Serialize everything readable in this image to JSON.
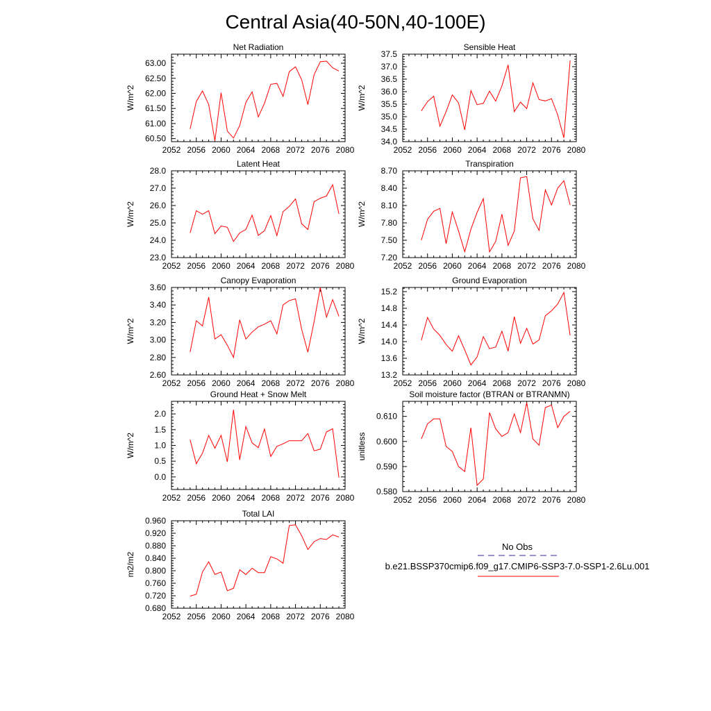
{
  "page_title": "Central Asia(40-50N,40-100E)",
  "colors": {
    "series": "#ff0000",
    "obs": "#2a2a9e",
    "axis": "#000000"
  },
  "legend": {
    "obs_label": "No Obs",
    "model_label": "b.e21.BSSP370cmip6.f09_g17.CMIP6-SSP3-7.0-SSP1-2.6Lu.001"
  },
  "chart_data": [
    {
      "id": "net-radiation",
      "type": "line",
      "title": "Net Radiation",
      "ylabel": "W/m^2",
      "xlim": [
        2052,
        2080
      ],
      "ylim": [
        60.4,
        63.3
      ],
      "x_ticks": [
        "2052",
        "2056",
        "2060",
        "2064",
        "2068",
        "2072",
        "2076",
        "2080"
      ],
      "y_ticks": [
        "60.50",
        "61.00",
        "61.50",
        "62.00",
        "62.50",
        "63.00"
      ],
      "x": [
        2055,
        2056,
        2057,
        2058,
        2059,
        2060,
        2061,
        2062,
        2063,
        2064,
        2065,
        2066,
        2067,
        2068,
        2069,
        2070,
        2071,
        2072,
        2073,
        2074,
        2075,
        2076,
        2077,
        2078,
        2079
      ],
      "values": [
        60.82,
        61.73,
        62.08,
        61.63,
        60.43,
        62.02,
        60.75,
        60.52,
        60.93,
        61.7,
        62.05,
        61.22,
        61.67,
        62.3,
        62.33,
        61.9,
        62.72,
        62.88,
        62.45,
        61.63,
        62.62,
        63.05,
        63.07,
        62.85,
        62.74
      ]
    },
    {
      "id": "sensible-heat",
      "type": "line",
      "title": "Sensible Heat",
      "ylabel": "W/m^2",
      "xlim": [
        2052,
        2080
      ],
      "ylim": [
        34.0,
        37.5
      ],
      "x_ticks": [
        "2052",
        "2056",
        "2060",
        "2064",
        "2068",
        "2072",
        "2076",
        "2080"
      ],
      "y_ticks": [
        "34.0",
        "34.5",
        "35.0",
        "35.5",
        "36.0",
        "36.5",
        "37.0",
        "37.5"
      ],
      "x": [
        2055,
        2056,
        2057,
        2058,
        2059,
        2060,
        2061,
        2062,
        2063,
        2064,
        2065,
        2066,
        2067,
        2068,
        2069,
        2070,
        2071,
        2072,
        2073,
        2074,
        2075,
        2076,
        2077,
        2078,
        2079
      ],
      "values": [
        35.23,
        35.6,
        35.82,
        34.62,
        35.2,
        35.87,
        35.55,
        34.47,
        36.04,
        35.48,
        35.53,
        36.02,
        35.62,
        36.23,
        37.07,
        35.2,
        35.58,
        35.32,
        36.35,
        35.68,
        35.63,
        35.72,
        35.07,
        34.15,
        37.25
      ]
    },
    {
      "id": "latent-heat",
      "type": "line",
      "title": "Latent Heat",
      "ylabel": "W/m^2",
      "xlim": [
        2052,
        2080
      ],
      "ylim": [
        23.0,
        28.0
      ],
      "x_ticks": [
        "2052",
        "2056",
        "2060",
        "2064",
        "2068",
        "2072",
        "2076",
        "2080"
      ],
      "y_ticks": [
        "23.0",
        "24.0",
        "25.0",
        "26.0",
        "27.0",
        "28.0"
      ],
      "x": [
        2055,
        2056,
        2057,
        2058,
        2059,
        2060,
        2061,
        2062,
        2063,
        2064,
        2065,
        2066,
        2067,
        2068,
        2069,
        2070,
        2071,
        2072,
        2073,
        2074,
        2075,
        2076,
        2077,
        2078,
        2079
      ],
      "values": [
        24.42,
        25.7,
        25.5,
        25.7,
        24.38,
        24.82,
        24.75,
        23.93,
        24.42,
        24.62,
        25.45,
        24.28,
        24.55,
        25.42,
        24.27,
        25.65,
        25.95,
        26.38,
        24.95,
        24.62,
        26.22,
        26.42,
        26.55,
        27.2,
        25.52
      ]
    },
    {
      "id": "transpiration",
      "type": "line",
      "title": "Transpiration",
      "ylabel": "W/m^2",
      "xlim": [
        2052,
        2080
      ],
      "ylim": [
        7.2,
        8.7
      ],
      "x_ticks": [
        "2052",
        "2056",
        "2060",
        "2064",
        "2068",
        "2072",
        "2076",
        "2080"
      ],
      "y_ticks": [
        "7.20",
        "7.50",
        "7.80",
        "8.10",
        "8.40",
        "8.70"
      ],
      "x": [
        2055,
        2056,
        2057,
        2058,
        2059,
        2060,
        2061,
        2062,
        2063,
        2064,
        2065,
        2066,
        2067,
        2068,
        2069,
        2070,
        2071,
        2072,
        2073,
        2074,
        2075,
        2076,
        2077,
        2078,
        2079
      ],
      "values": [
        7.5,
        7.86,
        8.0,
        8.05,
        7.44,
        7.99,
        7.66,
        7.3,
        7.69,
        7.98,
        8.22,
        7.3,
        7.48,
        7.95,
        7.41,
        7.66,
        8.58,
        8.6,
        7.87,
        7.67,
        8.37,
        8.11,
        8.4,
        8.53,
        8.11
      ]
    },
    {
      "id": "canopy-evaporation",
      "type": "line",
      "title": "Canopy Evaporation",
      "ylabel": "W/m^2",
      "xlim": [
        2052,
        2080
      ],
      "ylim": [
        2.6,
        3.6
      ],
      "x_ticks": [
        "2052",
        "2056",
        "2060",
        "2064",
        "2068",
        "2072",
        "2076",
        "2080"
      ],
      "y_ticks": [
        "2.60",
        "2.80",
        "3.00",
        "3.20",
        "3.40",
        "3.60"
      ],
      "x": [
        2055,
        2056,
        2057,
        2058,
        2059,
        2060,
        2061,
        2062,
        2063,
        2064,
        2065,
        2066,
        2067,
        2068,
        2069,
        2070,
        2071,
        2072,
        2073,
        2074,
        2075,
        2076,
        2077,
        2078,
        2079
      ],
      "values": [
        2.86,
        3.22,
        3.16,
        3.49,
        3.01,
        3.06,
        2.94,
        2.8,
        3.23,
        3.01,
        3.09,
        3.15,
        3.18,
        3.22,
        3.07,
        3.4,
        3.45,
        3.47,
        3.12,
        2.86,
        3.21,
        3.6,
        3.26,
        3.46,
        3.27
      ]
    },
    {
      "id": "ground-evaporation",
      "type": "line",
      "title": "Ground Evaporation",
      "ylabel": "W/m^2",
      "xlim": [
        2052,
        2080
      ],
      "ylim": [
        13.2,
        15.3
      ],
      "x_ticks": [
        "2052",
        "2056",
        "2060",
        "2064",
        "2068",
        "2072",
        "2076",
        "2080"
      ],
      "y_ticks": [
        "13.2",
        "13.6",
        "14.0",
        "14.4",
        "14.8",
        "15.2"
      ],
      "x": [
        2055,
        2056,
        2057,
        2058,
        2059,
        2060,
        2061,
        2062,
        2063,
        2064,
        2065,
        2066,
        2067,
        2068,
        2069,
        2070,
        2071,
        2072,
        2073,
        2074,
        2075,
        2076,
        2077,
        2078,
        2079
      ],
      "values": [
        14.03,
        14.58,
        14.3,
        14.15,
        13.93,
        13.77,
        14.14,
        13.8,
        13.44,
        13.63,
        14.12,
        13.83,
        13.87,
        14.25,
        13.77,
        14.6,
        13.96,
        14.32,
        13.94,
        14.04,
        14.62,
        14.74,
        14.9,
        15.18,
        14.15
      ]
    },
    {
      "id": "ground-heat-snow-melt",
      "type": "line",
      "title": "Ground Heat + Snow Melt",
      "ylabel": "W/m^2",
      "xlim": [
        2052,
        2080
      ],
      "ylim": [
        -0.4,
        2.4
      ],
      "x_ticks": [
        "2052",
        "2056",
        "2060",
        "2064",
        "2068",
        "2072",
        "2076",
        "2080"
      ],
      "y_ticks": [
        "0.0",
        "0.5",
        "1.0",
        "1.5",
        "2.0"
      ],
      "x": [
        2055,
        2056,
        2057,
        2058,
        2059,
        2060,
        2061,
        2062,
        2063,
        2064,
        2065,
        2066,
        2067,
        2068,
        2069,
        2070,
        2071,
        2072,
        2073,
        2074,
        2075,
        2076,
        2077,
        2078,
        2079
      ],
      "values": [
        1.18,
        0.42,
        0.75,
        1.32,
        0.91,
        1.32,
        0.48,
        2.13,
        0.54,
        1.6,
        1.08,
        0.93,
        1.52,
        0.65,
        0.97,
        1.05,
        1.15,
        1.15,
        1.15,
        1.38,
        0.83,
        0.88,
        1.43,
        1.53,
        -0.02
      ]
    },
    {
      "id": "soil-moisture-factor",
      "type": "line",
      "title": "Soil moisture factor (BTRAN or BTRANMN)",
      "ylabel": "unitless",
      "xlim": [
        2052,
        2080
      ],
      "ylim": [
        0.58,
        0.616
      ],
      "x_ticks": [
        "2052",
        "2056",
        "2060",
        "2064",
        "2068",
        "2072",
        "2076",
        "2080"
      ],
      "y_ticks": [
        "0.580",
        "0.590",
        "0.600",
        "0.610"
      ],
      "x": [
        2055,
        2056,
        2057,
        2058,
        2059,
        2060,
        2061,
        2062,
        2063,
        2064,
        2065,
        2066,
        2067,
        2068,
        2069,
        2070,
        2071,
        2072,
        2073,
        2074,
        2075,
        2076,
        2077,
        2078,
        2079
      ],
      "values": [
        0.601,
        0.607,
        0.609,
        0.609,
        0.598,
        0.596,
        0.59,
        0.588,
        0.6055,
        0.5825,
        0.585,
        0.6115,
        0.605,
        0.602,
        0.6035,
        0.611,
        0.6035,
        0.6155,
        0.601,
        0.5985,
        0.6135,
        0.6145,
        0.6055,
        0.61,
        0.612
      ]
    },
    {
      "id": "total-lai",
      "type": "line",
      "title": "Total LAI",
      "ylabel": "m2/m2",
      "xlim": [
        2052,
        2080
      ],
      "ylim": [
        0.68,
        0.96
      ],
      "x_ticks": [
        "2052",
        "2056",
        "2060",
        "2064",
        "2068",
        "2072",
        "2076",
        "2080"
      ],
      "y_ticks": [
        "0.680",
        "0.720",
        "0.760",
        "0.800",
        "0.840",
        "0.880",
        "0.920",
        "0.960"
      ],
      "x": [
        2055,
        2056,
        2057,
        2058,
        2059,
        2060,
        2061,
        2062,
        2063,
        2064,
        2065,
        2066,
        2067,
        2068,
        2069,
        2070,
        2071,
        2072,
        2073,
        2074,
        2075,
        2076,
        2077,
        2078,
        2079
      ],
      "values": [
        0.719,
        0.725,
        0.796,
        0.829,
        0.788,
        0.796,
        0.736,
        0.744,
        0.803,
        0.788,
        0.808,
        0.794,
        0.794,
        0.845,
        0.838,
        0.824,
        0.945,
        0.947,
        0.912,
        0.868,
        0.893,
        0.903,
        0.9,
        0.915,
        0.908
      ]
    }
  ]
}
